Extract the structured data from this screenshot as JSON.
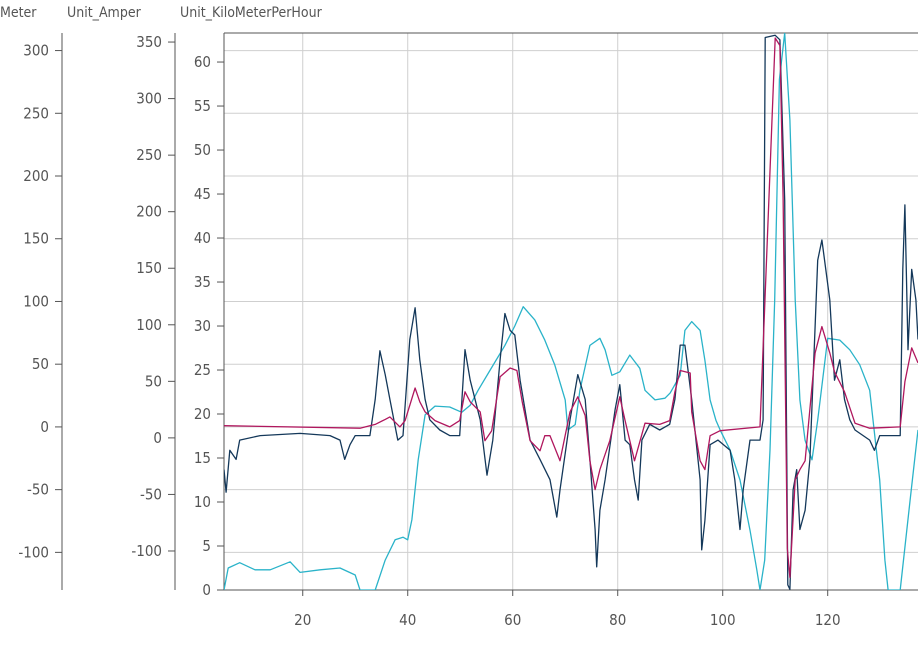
{
  "chart_data": {
    "type": "line",
    "title": "",
    "xlabel": "",
    "xlim": [
      5,
      137.2
    ],
    "xticks": [
      20,
      40,
      60,
      80,
      100,
      120
    ],
    "grid": true,
    "legend": "none",
    "y_axes": [
      {
        "id": "meter",
        "label": "Meter",
        "ylim": [
          -130,
          314
        ],
        "ticks": [
          -100,
          -50,
          0,
          50,
          100,
          150,
          200,
          250,
          300
        ]
      },
      {
        "id": "amper",
        "label": "Unit_Amper",
        "ylim": [
          -134.5,
          358
        ],
        "ticks": [
          -100,
          -50,
          0,
          50,
          100,
          150,
          200,
          250,
          300,
          350
        ]
      },
      {
        "id": "kmh",
        "label": "Unit_KiloMeterPerHour",
        "ylim": [
          0,
          63.3
        ],
        "ticks": [
          0,
          5,
          10,
          15,
          20,
          25,
          30,
          35,
          40,
          45,
          50,
          55,
          60
        ]
      }
    ],
    "series": [
      {
        "axis": "kmh",
        "color": "#2ab3c9",
        "points": [
          [
            5.0,
            0
          ],
          [
            5.8,
            2.5
          ],
          [
            8.0,
            3.1
          ],
          [
            10.9,
            2.3
          ],
          [
            13.8,
            2.3
          ],
          [
            17.6,
            3.2
          ],
          [
            19.5,
            2.0
          ],
          [
            23.3,
            2.3
          ],
          [
            27.1,
            2.5
          ],
          [
            30.0,
            1.7
          ],
          [
            30.9,
            0
          ],
          [
            33.8,
            0
          ],
          [
            35.7,
            3.4
          ],
          [
            37.6,
            5.7
          ],
          [
            39.1,
            6.0
          ],
          [
            40.0,
            5.7
          ],
          [
            40.8,
            8.0
          ],
          [
            42.0,
            14.8
          ],
          [
            43.3,
            19.9
          ],
          [
            45.2,
            20.9
          ],
          [
            48.0,
            20.8
          ],
          [
            50.3,
            20.2
          ],
          [
            51.9,
            21.0
          ],
          [
            53.4,
            22.7
          ],
          [
            55.7,
            25.0
          ],
          [
            58.5,
            27.8
          ],
          [
            60.4,
            30.0
          ],
          [
            62.0,
            32.2
          ],
          [
            64.2,
            30.7
          ],
          [
            66.1,
            28.4
          ],
          [
            68.0,
            25.6
          ],
          [
            70.0,
            21.6
          ],
          [
            70.5,
            18.2
          ],
          [
            71.9,
            18.8
          ],
          [
            72.8,
            22.7
          ],
          [
            74.7,
            27.8
          ],
          [
            76.6,
            28.6
          ],
          [
            77.6,
            27.3
          ],
          [
            78.9,
            24.4
          ],
          [
            80.4,
            24.8
          ],
          [
            82.3,
            26.7
          ],
          [
            84.2,
            25.2
          ],
          [
            85.2,
            22.7
          ],
          [
            87.1,
            21.6
          ],
          [
            89.0,
            21.8
          ],
          [
            90.0,
            22.4
          ],
          [
            91.9,
            24.4
          ],
          [
            92.8,
            29.5
          ],
          [
            94.1,
            30.5
          ],
          [
            95.7,
            29.5
          ],
          [
            96.6,
            26.1
          ],
          [
            97.6,
            21.6
          ],
          [
            98.7,
            19.3
          ],
          [
            99.5,
            18.2
          ],
          [
            101.4,
            15.9
          ],
          [
            103.3,
            12.5
          ],
          [
            105.2,
            6.8
          ],
          [
            106.5,
            2.3
          ],
          [
            107.1,
            0
          ],
          [
            108.0,
            3.4
          ],
          [
            109.0,
            15.9
          ],
          [
            109.9,
            33.0
          ],
          [
            110.8,
            58.0
          ],
          [
            111.8,
            63.3
          ],
          [
            112.8,
            53.4
          ],
          [
            113.8,
            33.0
          ],
          [
            114.7,
            21.6
          ],
          [
            115.7,
            17.0
          ],
          [
            117.0,
            14.8
          ],
          [
            118.1,
            19.3
          ],
          [
            120.0,
            28.6
          ],
          [
            122.3,
            28.4
          ],
          [
            124.2,
            27.3
          ],
          [
            126.1,
            25.6
          ],
          [
            128.0,
            22.7
          ],
          [
            129.9,
            12.5
          ],
          [
            130.9,
            3.4
          ],
          [
            131.5,
            0
          ],
          [
            133.8,
            0
          ],
          [
            135.7,
            10.2
          ],
          [
            137.2,
            18.2
          ]
        ]
      },
      {
        "axis": "amper",
        "color": "#14385a",
        "points": [
          [
            5.0,
            -28
          ],
          [
            5.4,
            -48
          ],
          [
            6.1,
            -11
          ],
          [
            7.3,
            -19
          ],
          [
            8.0,
            -2
          ],
          [
            11.9,
            2
          ],
          [
            19.5,
            4
          ],
          [
            25.2,
            2
          ],
          [
            27.1,
            -2
          ],
          [
            28.0,
            -19
          ],
          [
            29.0,
            -6
          ],
          [
            30.0,
            2
          ],
          [
            32.8,
            2
          ],
          [
            33.8,
            34
          ],
          [
            34.7,
            77
          ],
          [
            35.7,
            56
          ],
          [
            36.6,
            34
          ],
          [
            38.1,
            -2
          ],
          [
            39.1,
            2
          ],
          [
            40.4,
            87
          ],
          [
            41.4,
            115
          ],
          [
            42.3,
            69
          ],
          [
            43.3,
            34
          ],
          [
            44.2,
            16
          ],
          [
            46.1,
            7
          ],
          [
            48.0,
            2
          ],
          [
            49.9,
            2
          ],
          [
            50.9,
            78
          ],
          [
            51.9,
            51
          ],
          [
            53.8,
            16
          ],
          [
            55.1,
            -33
          ],
          [
            56.2,
            -2
          ],
          [
            57.6,
            69
          ],
          [
            58.5,
            110
          ],
          [
            59.5,
            95
          ],
          [
            60.4,
            91
          ],
          [
            61.4,
            51
          ],
          [
            63.3,
            -2
          ],
          [
            65.2,
            -19
          ],
          [
            67.1,
            -37
          ],
          [
            68.4,
            -70
          ],
          [
            69.0,
            -46
          ],
          [
            70.9,
            16
          ],
          [
            72.4,
            56
          ],
          [
            73.8,
            34
          ],
          [
            74.7,
            -19
          ],
          [
            75.7,
            -81
          ],
          [
            76.0,
            -114
          ],
          [
            76.6,
            -64
          ],
          [
            77.6,
            -37
          ],
          [
            79.5,
            25
          ],
          [
            80.4,
            47
          ],
          [
            81.4,
            -2
          ],
          [
            82.3,
            -6
          ],
          [
            83.2,
            -37
          ],
          [
            83.9,
            -55
          ],
          [
            84.6,
            -2
          ],
          [
            86.1,
            12
          ],
          [
            88.0,
            7
          ],
          [
            89.9,
            12
          ],
          [
            90.9,
            34
          ],
          [
            91.9,
            82
          ],
          [
            92.8,
            82
          ],
          [
            94.1,
            34
          ],
          [
            95.7,
            -37
          ],
          [
            96.0,
            -99
          ],
          [
            96.6,
            -73
          ],
          [
            97.6,
            -6
          ],
          [
            99.1,
            -2
          ],
          [
            101.4,
            -11
          ],
          [
            102.3,
            -37
          ],
          [
            103.3,
            -81
          ],
          [
            103.9,
            -46
          ],
          [
            105.2,
            -2
          ],
          [
            107.1,
            -2
          ],
          [
            107.7,
            16
          ],
          [
            108.1,
            354
          ],
          [
            110.0,
            356
          ],
          [
            110.9,
            352
          ],
          [
            111.8,
            210
          ],
          [
            112.4,
            -130
          ],
          [
            112.8,
            -134
          ],
          [
            113.4,
            -46
          ],
          [
            114.1,
            -28
          ],
          [
            114.7,
            -81
          ],
          [
            115.7,
            -64
          ],
          [
            116.6,
            -19
          ],
          [
            118.1,
            157
          ],
          [
            118.9,
            175
          ],
          [
            120.4,
            122
          ],
          [
            121.3,
            51
          ],
          [
            122.3,
            69
          ],
          [
            123.2,
            34
          ],
          [
            124.2,
            16
          ],
          [
            125.2,
            7
          ],
          [
            128.0,
            -2
          ],
          [
            128.9,
            -11
          ],
          [
            129.9,
            2
          ],
          [
            133.8,
            2
          ],
          [
            134.3,
            149
          ],
          [
            134.7,
            206
          ],
          [
            135.3,
            78
          ],
          [
            136.0,
            149
          ],
          [
            136.8,
            122
          ],
          [
            137.2,
            87
          ]
        ]
      },
      {
        "axis": "meter",
        "color": "#b0175e",
        "points": [
          [
            5.0,
            1
          ],
          [
            30.9,
            -1
          ],
          [
            33.8,
            2
          ],
          [
            35.7,
            6
          ],
          [
            36.6,
            8
          ],
          [
            38.5,
            0
          ],
          [
            39.5,
            5
          ],
          [
            41.4,
            31
          ],
          [
            42.3,
            20
          ],
          [
            43.3,
            12
          ],
          [
            45.2,
            5
          ],
          [
            48.0,
            0
          ],
          [
            49.9,
            5
          ],
          [
            50.9,
            28
          ],
          [
            51.9,
            20
          ],
          [
            53.8,
            12
          ],
          [
            54.7,
            -11
          ],
          [
            56.0,
            -3
          ],
          [
            57.6,
            40
          ],
          [
            59.5,
            47
          ],
          [
            60.8,
            45
          ],
          [
            61.8,
            20
          ],
          [
            63.3,
            -11
          ],
          [
            65.2,
            -19
          ],
          [
            66.1,
            -7
          ],
          [
            67.1,
            -7
          ],
          [
            69.0,
            -27
          ],
          [
            70.9,
            12
          ],
          [
            72.4,
            24
          ],
          [
            73.8,
            9
          ],
          [
            74.7,
            -27
          ],
          [
            75.7,
            -50
          ],
          [
            76.6,
            -34
          ],
          [
            78.5,
            -11
          ],
          [
            80.4,
            24
          ],
          [
            81.4,
            5
          ],
          [
            82.3,
            -11
          ],
          [
            83.2,
            -27
          ],
          [
            85.2,
            3
          ],
          [
            88.0,
            2
          ],
          [
            89.9,
            5
          ],
          [
            90.9,
            28
          ],
          [
            91.9,
            45
          ],
          [
            93.8,
            43
          ],
          [
            94.1,
            12
          ],
          [
            95.7,
            -27
          ],
          [
            96.6,
            -34
          ],
          [
            97.6,
            -7
          ],
          [
            99.5,
            -3
          ],
          [
            107.1,
            0
          ],
          [
            108.1,
            106
          ],
          [
            110.0,
            310
          ],
          [
            110.9,
            304
          ],
          [
            111.5,
            183
          ],
          [
            112.3,
            -97
          ],
          [
            112.8,
            -120
          ],
          [
            113.8,
            -42
          ],
          [
            114.7,
            -34
          ],
          [
            115.7,
            -27
          ],
          [
            117.6,
            59
          ],
          [
            118.9,
            80
          ],
          [
            120.4,
            59
          ],
          [
            121.3,
            44
          ],
          [
            123.2,
            28
          ],
          [
            125.2,
            3
          ],
          [
            128.0,
            -1
          ],
          [
            133.8,
            0
          ],
          [
            134.7,
            36
          ],
          [
            136.0,
            63
          ],
          [
            137.2,
            51
          ]
        ]
      }
    ]
  }
}
